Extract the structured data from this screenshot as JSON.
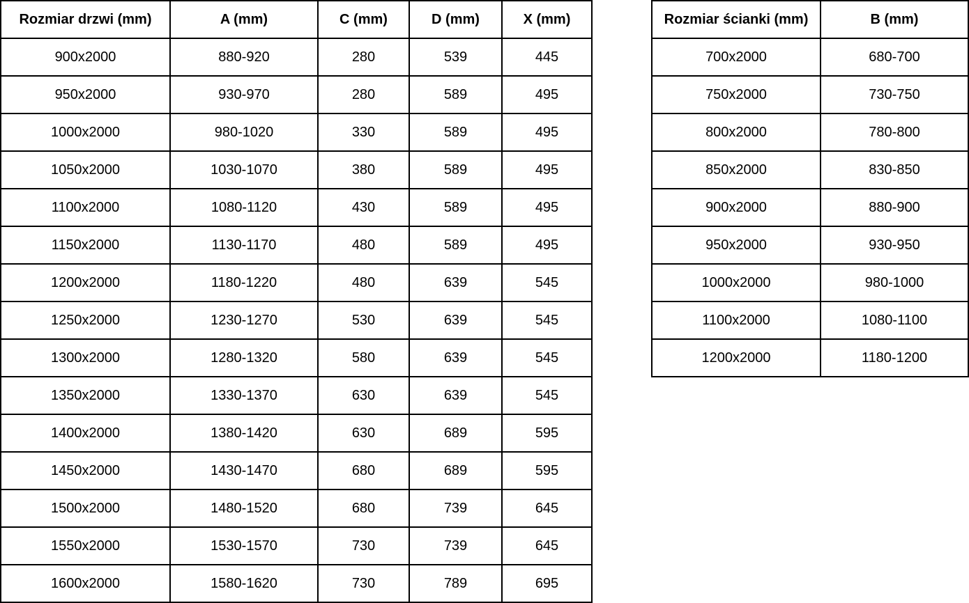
{
  "colors": {
    "background": "#ffffff",
    "border": "#000000",
    "text": "#000000"
  },
  "door_table": {
    "headers": [
      "Rozmiar drzwi (mm)",
      "A (mm)",
      "C (mm)",
      "D (mm)",
      "X (mm)"
    ],
    "rows": [
      [
        "900x2000",
        "880-920",
        "280",
        "539",
        "445"
      ],
      [
        "950x2000",
        "930-970",
        "280",
        "589",
        "495"
      ],
      [
        "1000x2000",
        "980-1020",
        "330",
        "589",
        "495"
      ],
      [
        "1050x2000",
        "1030-1070",
        "380",
        "589",
        "495"
      ],
      [
        "1100x2000",
        "1080-1120",
        "430",
        "589",
        "495"
      ],
      [
        "1150x2000",
        "1130-1170",
        "480",
        "589",
        "495"
      ],
      [
        "1200x2000",
        "1180-1220",
        "480",
        "639",
        "545"
      ],
      [
        "1250x2000",
        "1230-1270",
        "530",
        "639",
        "545"
      ],
      [
        "1300x2000",
        "1280-1320",
        "580",
        "639",
        "545"
      ],
      [
        "1350x2000",
        "1330-1370",
        "630",
        "639",
        "545"
      ],
      [
        "1400x2000",
        "1380-1420",
        "630",
        "689",
        "595"
      ],
      [
        "1450x2000",
        "1430-1470",
        "680",
        "689",
        "595"
      ],
      [
        "1500x2000",
        "1480-1520",
        "680",
        "739",
        "645"
      ],
      [
        "1550x2000",
        "1530-1570",
        "730",
        "739",
        "645"
      ],
      [
        "1600x2000",
        "1580-1620",
        "730",
        "789",
        "695"
      ]
    ]
  },
  "wall_table": {
    "headers": [
      "Rozmiar ścianki (mm)",
      "B (mm)"
    ],
    "rows": [
      [
        "700x2000",
        "680-700"
      ],
      [
        "750x2000",
        "730-750"
      ],
      [
        "800x2000",
        "780-800"
      ],
      [
        "850x2000",
        "830-850"
      ],
      [
        "900x2000",
        "880-900"
      ],
      [
        "950x2000",
        "930-950"
      ],
      [
        "1000x2000",
        "980-1000"
      ],
      [
        "1100x2000",
        "1080-1100"
      ],
      [
        "1200x2000",
        "1180-1200"
      ]
    ]
  }
}
